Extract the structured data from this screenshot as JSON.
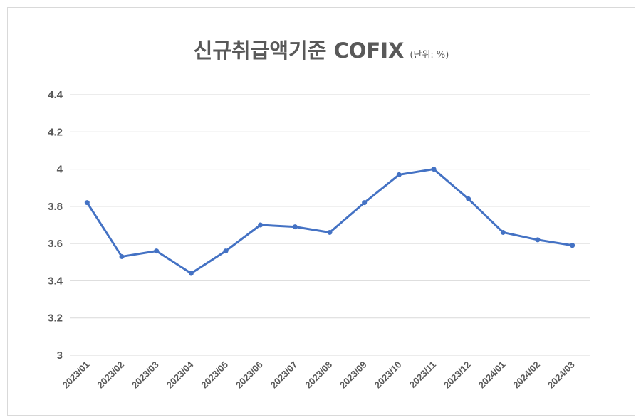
{
  "chart_data": {
    "type": "line",
    "title": "신규취급액기준 COFIX",
    "subtitle": "(단위: %)",
    "xlabel": "",
    "ylabel": "",
    "categories": [
      "2023/01",
      "2023/02",
      "2023/03",
      "2023/04",
      "2023/05",
      "2023/06",
      "2023/07",
      "2023/08",
      "2023/09",
      "2023/10",
      "2023/11",
      "2023/12",
      "2024/01",
      "2024/02",
      "2024/03"
    ],
    "series": [
      {
        "values": [
          3.82,
          3.53,
          3.56,
          3.44,
          3.56,
          3.7,
          3.69,
          3.66,
          3.82,
          3.97,
          4.0,
          3.84,
          3.66,
          3.62,
          3.59
        ]
      }
    ],
    "yticks": [
      "3",
      "3.2",
      "3.4",
      "3.6",
      "3.8",
      "4",
      "4.2",
      "4.4"
    ],
    "ylim": [
      3,
      4.4
    ],
    "grid": true,
    "legend": "none",
    "colors": {
      "line": "#4472C4",
      "grid": "#D9D9D9",
      "text": "#595959"
    }
  }
}
